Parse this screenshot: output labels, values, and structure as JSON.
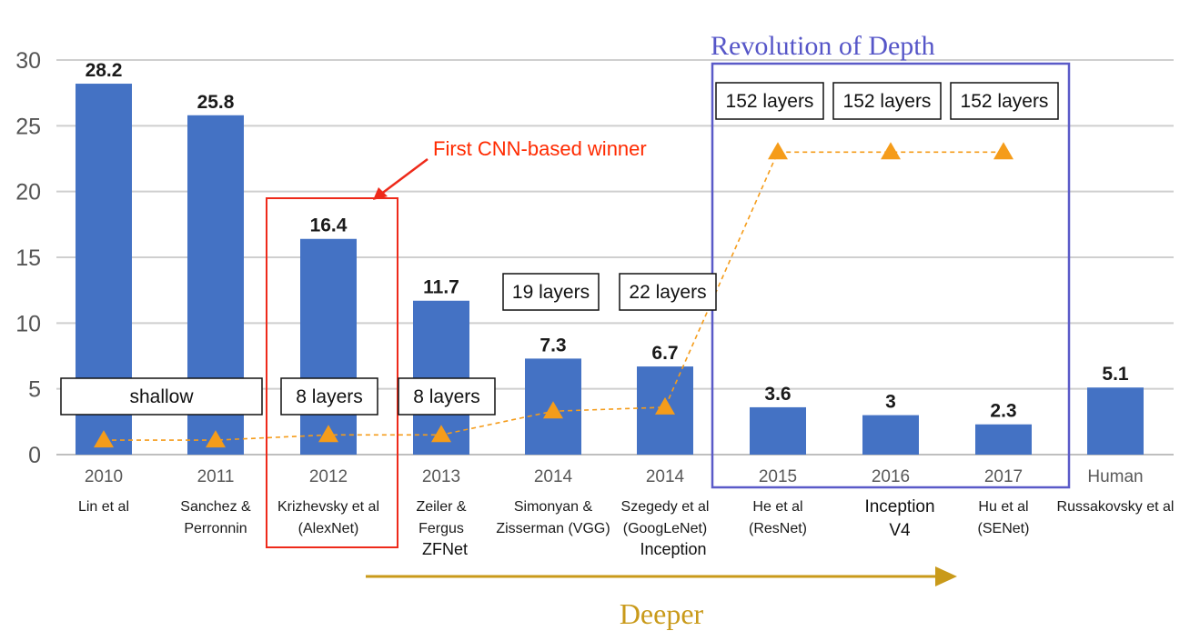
{
  "chart_data": {
    "type": "bar",
    "categories": [
      "2010",
      "2011",
      "2012",
      "2013",
      "2014",
      "2014",
      "2015",
      "2016",
      "2017",
      "Human"
    ],
    "authors": [
      [
        "Lin et al"
      ],
      [
        "Sanchez &",
        "Perronnin"
      ],
      [
        "Krizhevsky et al",
        "(AlexNet)"
      ],
      [
        "Zeiler &",
        "Fergus"
      ],
      [
        "Simonyan &",
        "Zisserman (VGG)"
      ],
      [
        "Szegedy et al",
        "(GoogLeNet)"
      ],
      [
        "He et al",
        "(ResNet)"
      ],
      [],
      [
        "Hu et al",
        "(SENet)"
      ],
      [
        "Russakovsky et al"
      ]
    ],
    "models": [
      "",
      "",
      "",
      "ZFNet",
      "",
      "Inception",
      "",
      "Inception V4",
      "",
      ""
    ],
    "values": [
      28.2,
      25.8,
      16.4,
      11.7,
      7.3,
      6.7,
      3.6,
      3,
      2.3,
      5.1
    ],
    "value_labels": [
      "28.2",
      "25.8",
      "16.4",
      "11.7",
      "7.3",
      "6.7",
      "3.6",
      "3",
      "2.3",
      "5.1"
    ],
    "ylim": [
      0,
      30
    ],
    "yticks": [
      0,
      5,
      10,
      15,
      20,
      25,
      30
    ],
    "grid": true,
    "bar_color": "#4472c4",
    "depth_line": {
      "color": "#f59c1a",
      "points": [
        1.1,
        1.1,
        1.5,
        1.5,
        3.3,
        3.6,
        23,
        23,
        23
      ]
    },
    "layer_labels": [
      {
        "text": "shallow",
        "covers": [
          0,
          1
        ]
      },
      {
        "text": "8 layers",
        "covers": [
          2
        ]
      },
      {
        "text": "8 layers",
        "covers": [
          3
        ]
      },
      {
        "text": "19 layers",
        "covers": [
          4
        ]
      },
      {
        "text": "22 layers",
        "covers": [
          5
        ]
      },
      {
        "text": "152 layers",
        "covers": [
          6
        ]
      },
      {
        "text": "152 layers",
        "covers": [
          7
        ]
      },
      {
        "text": "152 layers",
        "covers": [
          8
        ]
      }
    ],
    "annotations": {
      "first_cnn": {
        "text": "First CNN-based winner",
        "color": "#ff2a00"
      },
      "revolution": {
        "text": "Revolution of Depth",
        "color": "#5656c8"
      },
      "deeper": {
        "text": "Deeper",
        "color": "#c99a1a"
      }
    }
  }
}
